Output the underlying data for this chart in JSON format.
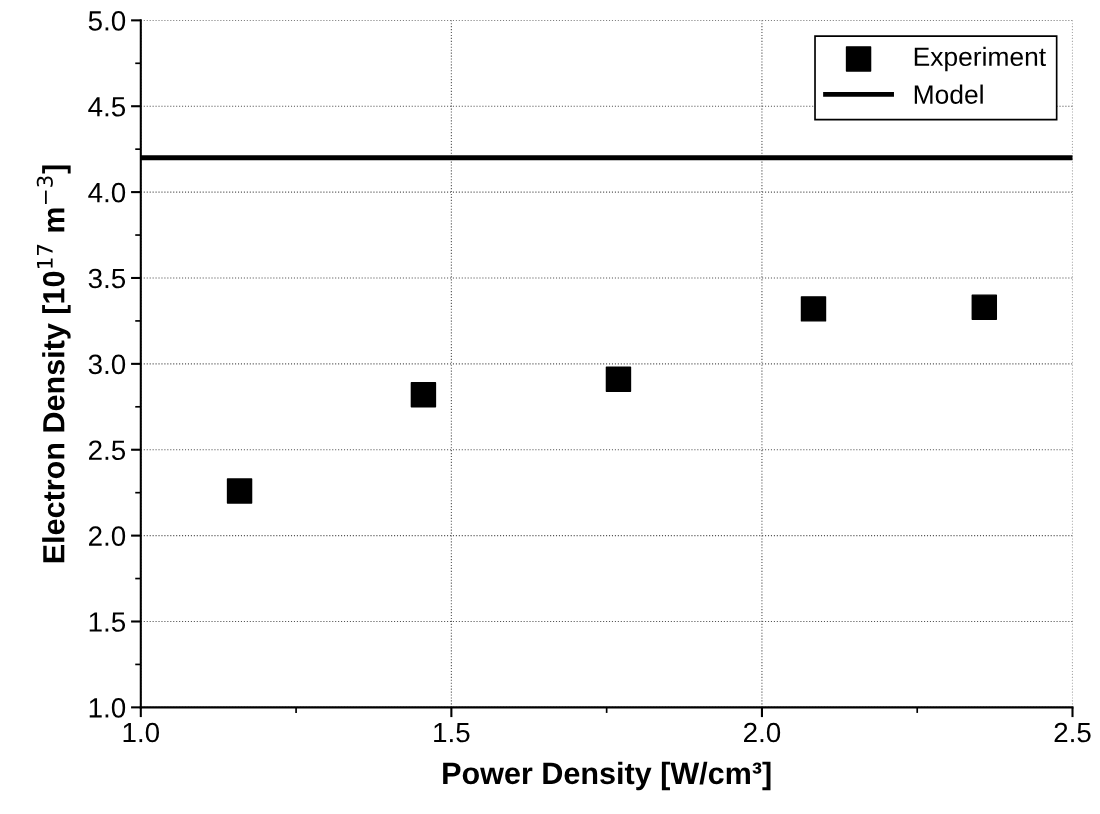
{
  "chart_data": {
    "type": "scatter",
    "xlabel": "Power Density [W/cm³]",
    "ylabel": "Electron Density [10$^{17}$ m$^{−3}$]",
    "series": [
      {
        "name": "Experiment",
        "color": "#000000",
        "marker": "square",
        "x": [
          1.159,
          1.455,
          1.769,
          2.083,
          2.358
        ],
        "values": [
          2.26,
          2.82,
          2.91,
          3.32,
          3.33
        ]
      },
      {
        "name": "Model",
        "type": "line",
        "color": "#000000",
        "marker": "none",
        "line_style": "solid",
        "x": [
          1.0,
          2.5
        ],
        "values": [
          4.2,
          4.2
        ]
      }
    ],
    "xlim": [
      1.0,
      2.5
    ],
    "xticks": [
      {
        "value": 1,
        "label": "1.0"
      },
      1.5,
      {
        "value": 2,
        "label": "2.0"
      },
      2.5
    ],
    "ylim": [
      1.0,
      5.0
    ],
    "yticks": [
      {
        "value": 1,
        "label": "1.0"
      },
      1.5,
      {
        "value": 2,
        "label": "2.0"
      },
      2.5,
      {
        "value": 3,
        "label": "3.0"
      },
      3.5,
      {
        "value": 4,
        "label": "4.0"
      },
      4.5,
      {
        "value": 5,
        "label": "5.0"
      }
    ],
    "grid": true,
    "legend": "top right"
  }
}
